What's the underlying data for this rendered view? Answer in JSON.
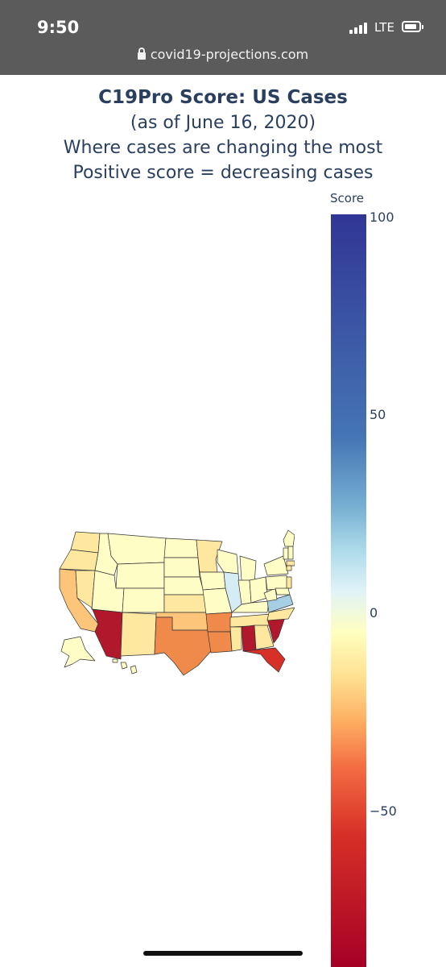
{
  "status_bar": {
    "time": "9:50",
    "network": "LTE",
    "url": "covid19-projections.com"
  },
  "title": {
    "main": "C19Pro Score: US Cases",
    "line2": "(as of June 16, 2020)",
    "line3": "Where cases are changing the most",
    "line4": "Positive score = decreasing cases"
  },
  "colorbar": {
    "title": "Score",
    "ticks": [
      "100",
      "50",
      "0",
      "−50"
    ],
    "range": [
      -85,
      100
    ],
    "colors": [
      "#313695",
      "#4575b4",
      "#74add1",
      "#abd9e9",
      "#e0f3f8",
      "#ffffbf",
      "#fee090",
      "#fdae61",
      "#f46d43",
      "#d73027",
      "#a50026"
    ]
  },
  "map": {
    "region": "United States",
    "fills": {
      "dark_red": "#b2182b",
      "red": "#d73027",
      "orange": "#f08a4b",
      "light_orange": "#fdc57a",
      "yellow": "#fee8a0",
      "pale_yellow": "#fffdc6",
      "light_blue": "#d6ecf4",
      "blue": "#a6cfe4"
    }
  }
}
